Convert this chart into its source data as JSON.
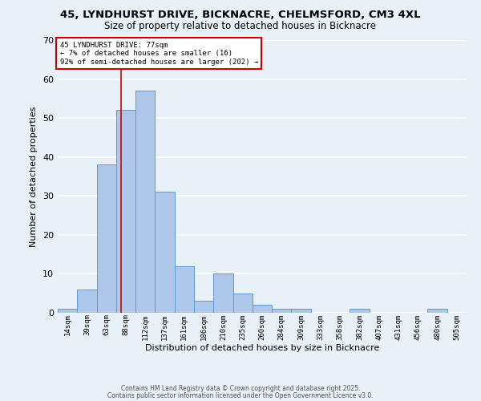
{
  "title_line1": "45, LYNDHURST DRIVE, BICKNACRE, CHELMSFORD, CM3 4XL",
  "title_line2": "Size of property relative to detached houses in Bicknacre",
  "xlabel": "Distribution of detached houses by size in Bicknacre",
  "ylabel": "Number of detached properties",
  "categories": [
    "14sqm",
    "39sqm",
    "63sqm",
    "88sqm",
    "112sqm",
    "137sqm",
    "161sqm",
    "186sqm",
    "210sqm",
    "235sqm",
    "260sqm",
    "284sqm",
    "309sqm",
    "333sqm",
    "358sqm",
    "382sqm",
    "407sqm",
    "431sqm",
    "456sqm",
    "480sqm",
    "505sqm"
  ],
  "bar_heights": [
    1,
    6,
    38,
    52,
    57,
    31,
    12,
    3,
    10,
    5,
    2,
    1,
    1,
    0,
    0,
    1,
    0,
    0,
    0,
    1,
    0
  ],
  "bar_color": "#aec6e8",
  "bar_edgecolor": "#5b9bd5",
  "background_color": "#e8f0f8",
  "grid_color": "#ffffff",
  "vline_x": 2.77,
  "vline_color": "#cc0000",
  "annotation_text": "45 LYNDHURST DRIVE: 77sqm\n← 7% of detached houses are smaller (16)\n92% of semi-detached houses are larger (202) →",
  "annotation_box_color": "#ffffff",
  "annotation_box_edgecolor": "#cc0000",
  "ylim": [
    0,
    70
  ],
  "yticks": [
    0,
    10,
    20,
    30,
    40,
    50,
    60,
    70
  ],
  "footer_line1": "Contains HM Land Registry data © Crown copyright and database right 2025.",
  "footer_line2": "Contains public sector information licensed under the Open Government Licence v3.0."
}
